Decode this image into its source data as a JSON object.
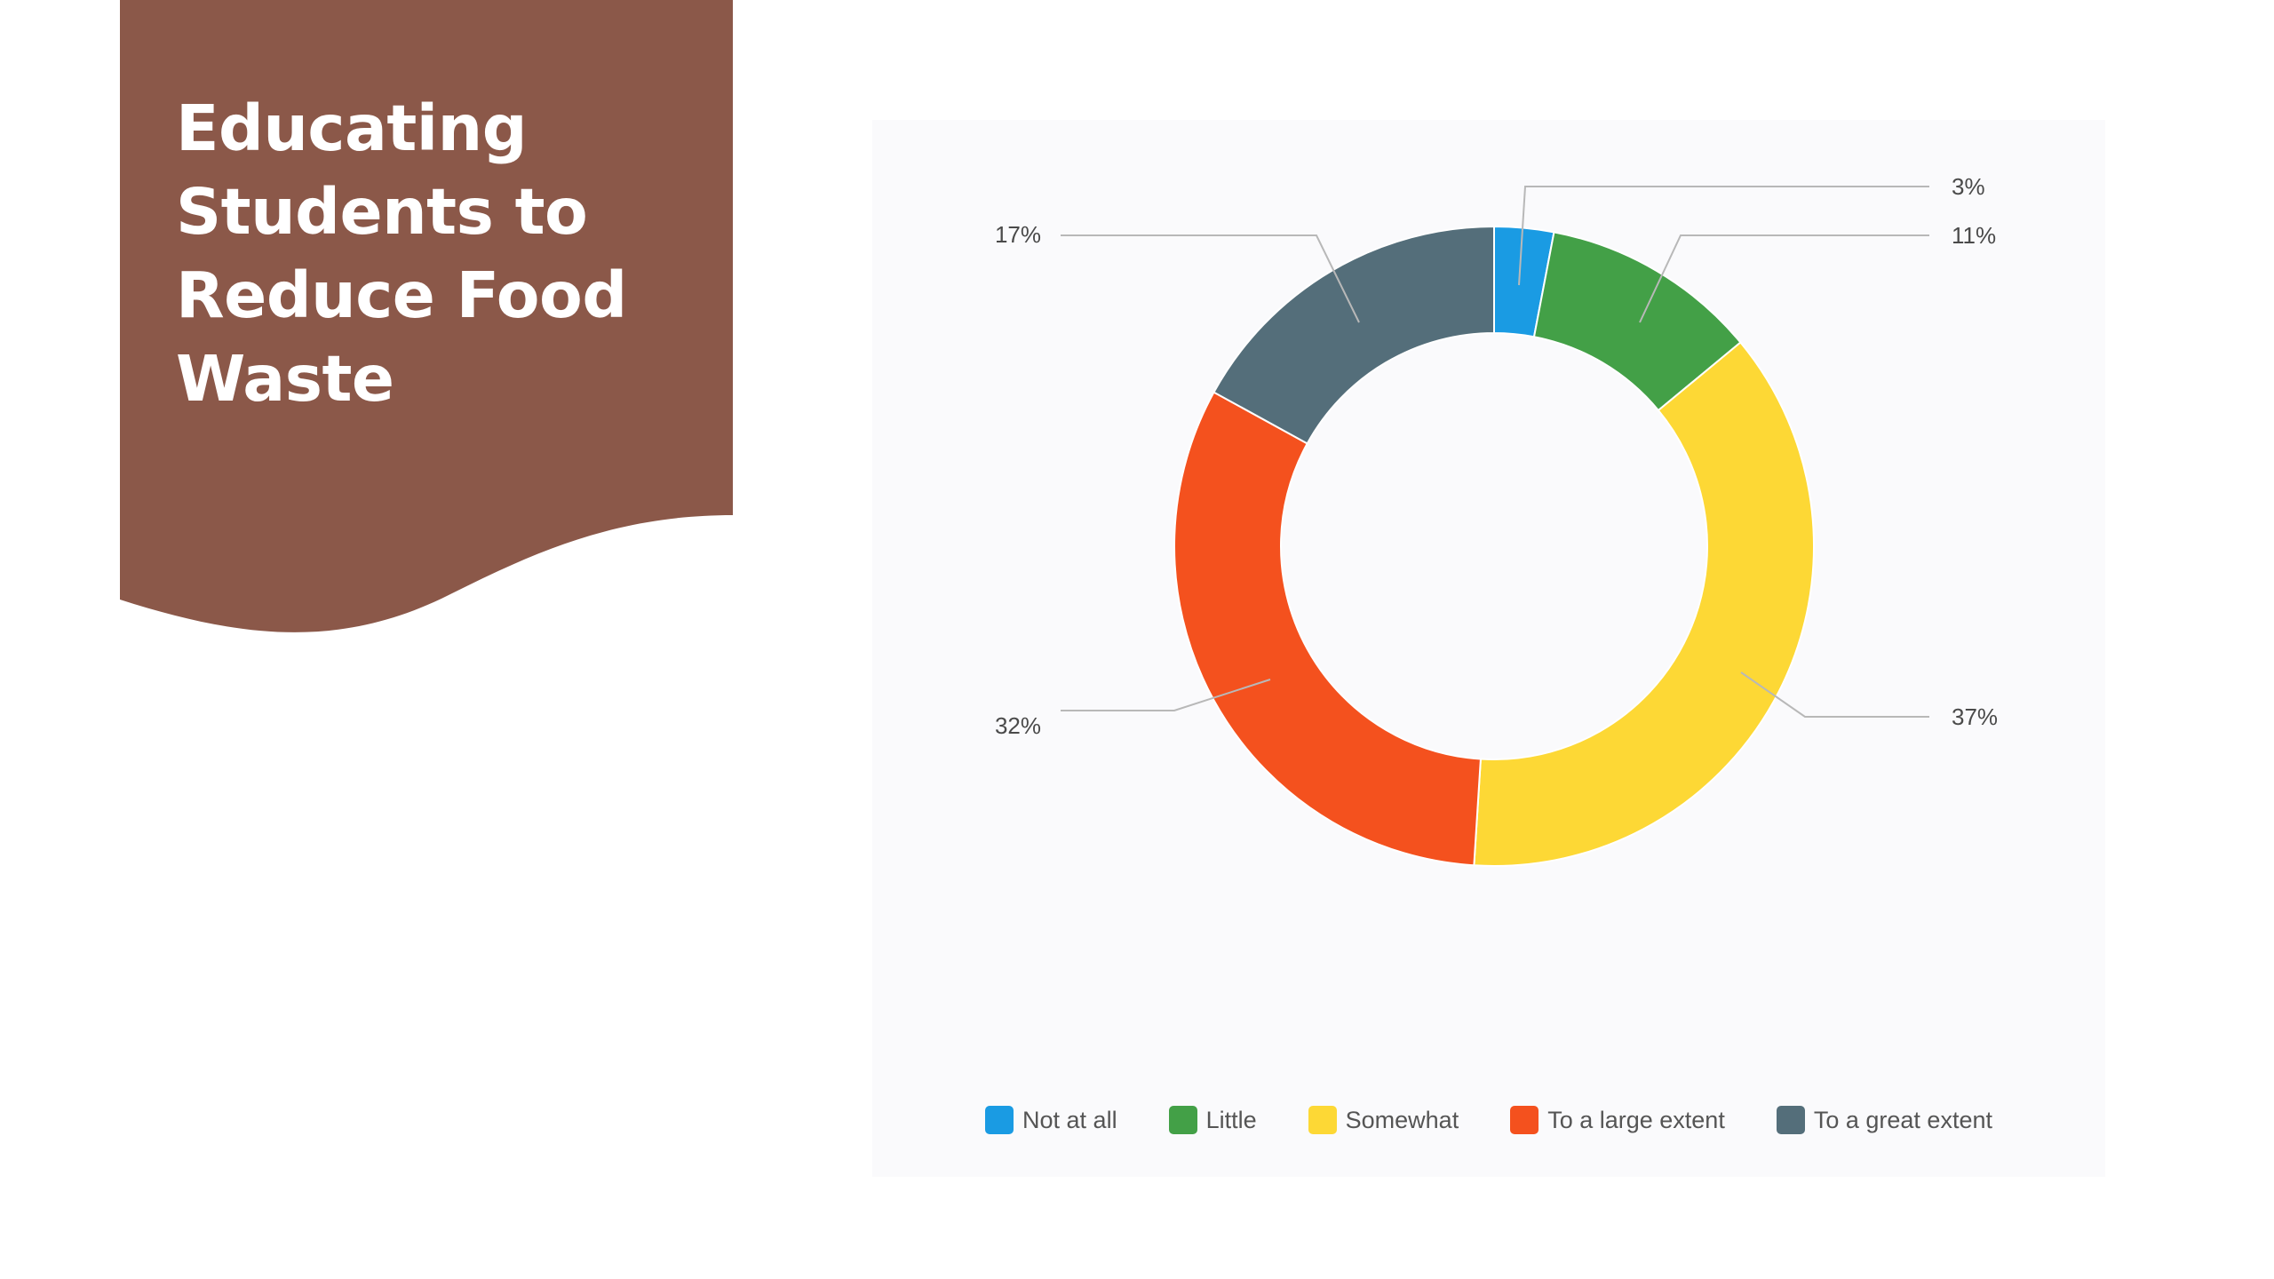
{
  "slide": {
    "title": "Educating Students to Reduce Food Waste",
    "banner_color": "#8b5849"
  },
  "chart_data": {
    "type": "pie",
    "variant": "donut",
    "categories": [
      "Not at all",
      "Little",
      "Somewhat",
      "To a large extent",
      "To a great extent"
    ],
    "values": [
      3,
      11,
      37,
      32,
      17
    ],
    "data_labels": [
      "3%",
      "11%",
      "37%",
      "32%",
      "17%"
    ],
    "colors": [
      "#1a9be3",
      "#43a047",
      "#fdd835",
      "#f4511e",
      "#546e7a"
    ],
    "legend_placement": "bottom",
    "title": ""
  }
}
